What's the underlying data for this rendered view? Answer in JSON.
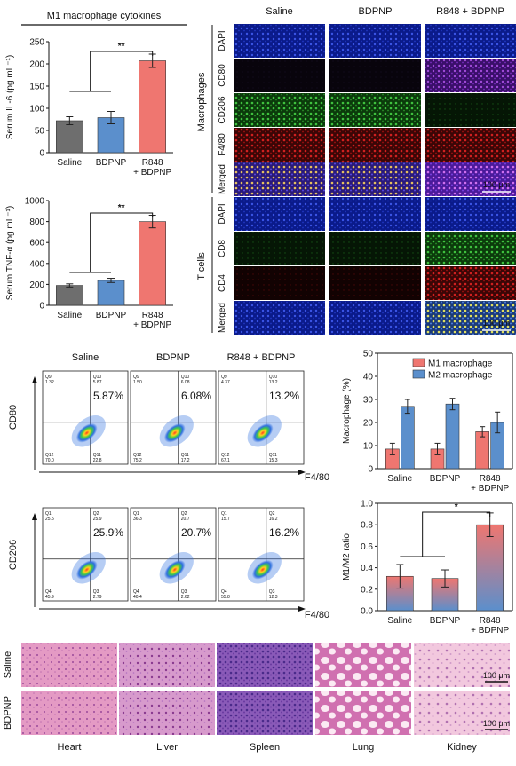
{
  "headers": {
    "cytokines": "M1 macrophage cytokines",
    "macrophages": "Macrophages",
    "tcells": "T cells"
  },
  "groups": [
    "Saline",
    "BDPNP",
    "R848 + BDPNP"
  ],
  "group_ticks": [
    "Saline",
    "BDPNP",
    "R848\n+ BDPNP"
  ],
  "if_rows_macro": [
    "DAPI",
    "CD80",
    "CD206",
    "F4/80",
    "Merged"
  ],
  "if_rows_t": [
    "DAPI",
    "CD8",
    "CD4",
    "Merged"
  ],
  "scale_bar": "100 μm",
  "flow": {
    "cd80_axis": "CD80",
    "cd206_axis": "CD206",
    "x_axis": "F4/80",
    "cd80_pct": [
      "5.87%",
      "6.08%",
      "13.2%"
    ],
    "cd206_pct": [
      "25.9%",
      "20.7%",
      "16.2%"
    ],
    "cd80_q": [
      {
        "tl": "Q9",
        "tl2": "1.32",
        "tr": "Q10",
        "tr2": "5.87",
        "bl": "Q12",
        "bl2": "70.0",
        "br": "Q11",
        "br2": "22.8"
      },
      {
        "tl": "Q9",
        "tl2": "1.50",
        "tr": "Q10",
        "tr2": "6.08",
        "bl": "Q12",
        "bl2": "75.2",
        "br": "Q11",
        "br2": "17.2"
      },
      {
        "tl": "Q9",
        "tl2": "4.37",
        "tr": "Q10",
        "tr2": "13.2",
        "bl": "Q12",
        "bl2": "67.1",
        "br": "Q11",
        "br2": "15.3"
      }
    ],
    "cd206_q": [
      {
        "tl": "Q1",
        "tl2": "25.5",
        "tr": "Q2",
        "tr2": "25.9",
        "bl": "Q4",
        "bl2": "45.9",
        "br": "Q3",
        "br2": "2.79"
      },
      {
        "tl": "Q1",
        "tl2": "36.3",
        "tr": "Q2",
        "tr2": "20.7",
        "bl": "Q4",
        "bl2": "40.4",
        "br": "Q3",
        "br2": "2.62"
      },
      {
        "tl": "Q1",
        "tl2": "15.7",
        "tr": "Q2",
        "tr2": "16.2",
        "bl": "Q4",
        "bl2": "55.8",
        "br": "Q3",
        "br2": "12.3"
      }
    ]
  },
  "histo": {
    "rows": [
      "Saline",
      "BDPNP"
    ],
    "organs": [
      "Heart",
      "Liver",
      "Spleen",
      "Lung",
      "Kidney"
    ]
  },
  "chart_data": [
    {
      "type": "bar",
      "ylabel": "Serum IL-6 (pg mL⁻¹)",
      "categories": [
        "Saline",
        "BDPNP",
        "R848 + BDPNP"
      ],
      "values": [
        72,
        79,
        207
      ],
      "errors": [
        9,
        14,
        15
      ],
      "ylim": [
        0,
        250
      ],
      "yticks": [
        0,
        50,
        100,
        150,
        200,
        250
      ],
      "colors": [
        "#6e6e6e",
        "#5b8fcc",
        "#ef7670"
      ],
      "significance": "**"
    },
    {
      "type": "bar",
      "ylabel": "Serum TNF-α (pg mL⁻¹)",
      "categories": [
        "Saline",
        "BDPNP",
        "R848 + BDPNP"
      ],
      "values": [
        190,
        238,
        800
      ],
      "errors": [
        15,
        20,
        60
      ],
      "ylim": [
        0,
        1000
      ],
      "yticks": [
        0,
        200,
        400,
        600,
        800,
        1000
      ],
      "colors": [
        "#6e6e6e",
        "#5b8fcc",
        "#ef7670"
      ],
      "significance": "**"
    },
    {
      "type": "bar",
      "ylabel": "Macrophage (%)",
      "categories": [
        "Saline",
        "BDPNP",
        "R848 + BDPNP"
      ],
      "series": [
        {
          "name": "M1 macrophage",
          "values": [
            8.5,
            8.5,
            16
          ],
          "errors": [
            2.5,
            2.5,
            2.2
          ],
          "color": "#ef7670"
        },
        {
          "name": "M2 macrophage",
          "values": [
            27,
            28,
            20
          ],
          "errors": [
            3,
            2.5,
            4.5
          ],
          "color": "#5b8fcc"
        }
      ],
      "ylim": [
        0,
        50
      ],
      "yticks": [
        0,
        10,
        20,
        30,
        40,
        50
      ],
      "legend": "top-right"
    },
    {
      "type": "bar",
      "ylabel": "M1/M2 ratio",
      "categories": [
        "Saline",
        "BDPNP",
        "R848 + BDPNP"
      ],
      "values": [
        0.32,
        0.3,
        0.8
      ],
      "errors": [
        0.11,
        0.08,
        0.11
      ],
      "ylim": [
        0,
        1.0
      ],
      "yticks": [
        "0.0",
        "0.2",
        "0.4",
        "0.6",
        "0.8",
        "1.0"
      ],
      "colors": [
        "#ef7670",
        "#5b8fcc"
      ],
      "significance": "*"
    }
  ]
}
